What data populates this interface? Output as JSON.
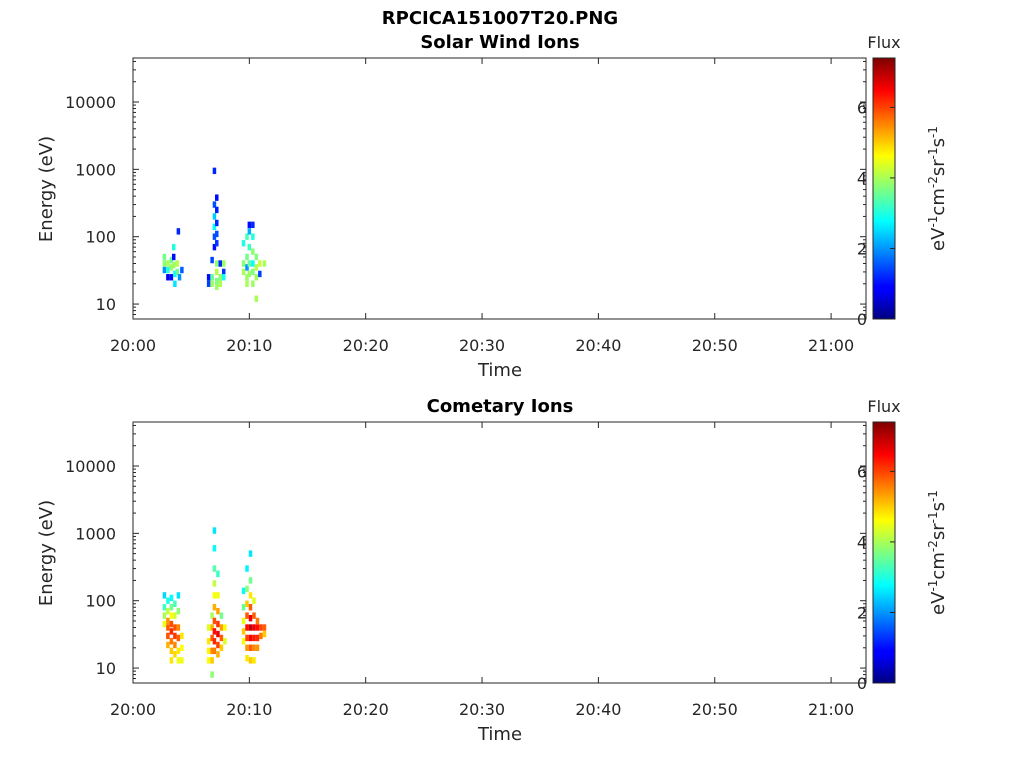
{
  "figure_title": "RPCICA151007T20.PNG",
  "colorbar": {
    "label": "Flux",
    "unit_base": "eV",
    "unit_exp1": "-1",
    "unit_cm": "cm",
    "unit_exp2": "-2",
    "unit_sr": "sr",
    "unit_exp3": "-1",
    "unit_s": "s",
    "unit_exp4": "-1",
    "range": [
      0,
      7.4
    ],
    "ticks": [
      "0",
      "2",
      "4",
      "6"
    ],
    "colormap": "jet"
  },
  "chart_data": [
    {
      "type": "heatmap",
      "title": "Solar Wind Ions",
      "xlabel": "Time",
      "ylabel": "Energy (eV)",
      "xlim_minutes_after_2000": [
        0,
        63
      ],
      "ylim": [
        6,
        45000
      ],
      "yscale": "log",
      "xtick_labels": [
        "20:00",
        "20:10",
        "20:20",
        "20:30",
        "20:40",
        "20:50",
        "21:00"
      ],
      "ytick_labels": [
        "10",
        "100",
        "1000",
        "10000"
      ],
      "grid": false,
      "cells": [
        {
          "t": 2.7,
          "e": 50,
          "v": 3.6
        },
        {
          "t": 2.7,
          "e": 40,
          "v": 3.8
        },
        {
          "t": 2.7,
          "e": 32,
          "v": 2.0
        },
        {
          "t": 3.0,
          "e": 40,
          "v": 4.0
        },
        {
          "t": 3.0,
          "e": 25,
          "v": 0.8
        },
        {
          "t": 3.0,
          "e": 32,
          "v": 3.0
        },
        {
          "t": 3.3,
          "e": 45,
          "v": 3.5
        },
        {
          "t": 3.3,
          "e": 35,
          "v": 3.9
        },
        {
          "t": 3.3,
          "e": 25,
          "v": 1.0
        },
        {
          "t": 3.5,
          "e": 70,
          "v": 3.0
        },
        {
          "t": 3.5,
          "e": 50,
          "v": 1.0
        },
        {
          "t": 3.5,
          "e": 38,
          "v": 3.9
        },
        {
          "t": 3.6,
          "e": 28,
          "v": 2.8
        },
        {
          "t": 3.6,
          "e": 20,
          "v": 2.6
        },
        {
          "t": 3.8,
          "e": 40,
          "v": 4.1
        },
        {
          "t": 3.8,
          "e": 30,
          "v": 3.5
        },
        {
          "t": 3.9,
          "e": 120,
          "v": 1.2
        },
        {
          "t": 4.0,
          "e": 25,
          "v": 2.0
        },
        {
          "t": 4.2,
          "e": 32,
          "v": 1.6
        },
        {
          "t": 6.5,
          "e": 25,
          "v": 1.0
        },
        {
          "t": 6.5,
          "e": 20,
          "v": 1.4
        },
        {
          "t": 6.8,
          "e": 45,
          "v": 1.4
        },
        {
          "t": 6.8,
          "e": 25,
          "v": 3.5
        },
        {
          "t": 6.8,
          "e": 20,
          "v": 3.9
        },
        {
          "t": 7.0,
          "e": 950,
          "v": 1.2
        },
        {
          "t": 7.0,
          "e": 300,
          "v": 1.5
        },
        {
          "t": 7.0,
          "e": 200,
          "v": 2.4
        },
        {
          "t": 7.0,
          "e": 140,
          "v": 2.8
        },
        {
          "t": 7.0,
          "e": 100,
          "v": 1.5
        },
        {
          "t": 7.0,
          "e": 70,
          "v": 1.0
        },
        {
          "t": 7.2,
          "e": 380,
          "v": 1.0
        },
        {
          "t": 7.2,
          "e": 250,
          "v": 1.1
        },
        {
          "t": 7.2,
          "e": 160,
          "v": 1.2
        },
        {
          "t": 7.2,
          "e": 110,
          "v": 1.5
        },
        {
          "t": 7.2,
          "e": 80,
          "v": 1.3
        },
        {
          "t": 7.2,
          "e": 40,
          "v": 3.8
        },
        {
          "t": 7.2,
          "e": 30,
          "v": 4.1
        },
        {
          "t": 7.2,
          "e": 22,
          "v": 3.7
        },
        {
          "t": 7.2,
          "e": 18,
          "v": 3.9
        },
        {
          "t": 7.5,
          "e": 40,
          "v": 1.2
        },
        {
          "t": 7.5,
          "e": 25,
          "v": 3.8
        },
        {
          "t": 7.5,
          "e": 20,
          "v": 4.0
        },
        {
          "t": 7.8,
          "e": 40,
          "v": 3.9
        },
        {
          "t": 7.8,
          "e": 30,
          "v": 1.3
        },
        {
          "t": 7.8,
          "e": 25,
          "v": 2.9
        },
        {
          "t": 9.5,
          "e": 80,
          "v": 3.0
        },
        {
          "t": 9.5,
          "e": 40,
          "v": 3.8
        },
        {
          "t": 9.5,
          "e": 30,
          "v": 4.0
        },
        {
          "t": 9.8,
          "e": 100,
          "v": 3.3
        },
        {
          "t": 9.8,
          "e": 50,
          "v": 3.6
        },
        {
          "t": 9.8,
          "e": 35,
          "v": 2.0
        },
        {
          "t": 9.8,
          "e": 25,
          "v": 3.9
        },
        {
          "t": 9.8,
          "e": 20,
          "v": 4.0
        },
        {
          "t": 10.0,
          "e": 150,
          "v": 1.0
        },
        {
          "t": 10.0,
          "e": 120,
          "v": 2.2
        },
        {
          "t": 10.0,
          "e": 70,
          "v": 3.2
        },
        {
          "t": 10.0,
          "e": 40,
          "v": 3.5
        },
        {
          "t": 10.0,
          "e": 28,
          "v": 3.9
        },
        {
          "t": 10.3,
          "e": 150,
          "v": 1.2
        },
        {
          "t": 10.3,
          "e": 100,
          "v": 3.0
        },
        {
          "t": 10.3,
          "e": 60,
          "v": 3.8
        },
        {
          "t": 10.3,
          "e": 40,
          "v": 2.8
        },
        {
          "t": 10.3,
          "e": 30,
          "v": 3.7
        },
        {
          "t": 10.3,
          "e": 20,
          "v": 3.9
        },
        {
          "t": 10.6,
          "e": 50,
          "v": 3.7
        },
        {
          "t": 10.6,
          "e": 35,
          "v": 4.1
        },
        {
          "t": 10.6,
          "e": 25,
          "v": 3.9
        },
        {
          "t": 10.6,
          "e": 12,
          "v": 4.0
        },
        {
          "t": 10.9,
          "e": 40,
          "v": 4.2
        },
        {
          "t": 10.9,
          "e": 28,
          "v": 1.4
        },
        {
          "t": 11.3,
          "e": 40,
          "v": 4.0
        }
      ]
    },
    {
      "type": "heatmap",
      "title": "Cometary Ions",
      "xlabel": "Time",
      "ylabel": "Energy (eV)",
      "xlim_minutes_after_2000": [
        0,
        63
      ],
      "ylim": [
        6,
        45000
      ],
      "yscale": "log",
      "xtick_labels": [
        "20:00",
        "20:10",
        "20:20",
        "20:30",
        "20:40",
        "20:50",
        "21:00"
      ],
      "ytick_labels": [
        "10",
        "100",
        "1000",
        "10000"
      ],
      "grid": false,
      "cells": [
        {
          "t": 2.7,
          "e": 120,
          "v": 2.5
        },
        {
          "t": 2.7,
          "e": 80,
          "v": 3.2
        },
        {
          "t": 2.7,
          "e": 60,
          "v": 4.0
        },
        {
          "t": 2.7,
          "e": 45,
          "v": 4.5
        },
        {
          "t": 3.0,
          "e": 100,
          "v": 3.0
        },
        {
          "t": 3.0,
          "e": 70,
          "v": 4.2
        },
        {
          "t": 3.0,
          "e": 50,
          "v": 5.4
        },
        {
          "t": 3.0,
          "e": 40,
          "v": 5.8
        },
        {
          "t": 3.0,
          "e": 30,
          "v": 5.9
        },
        {
          "t": 3.0,
          "e": 22,
          "v": 5.2
        },
        {
          "t": 3.3,
          "e": 110,
          "v": 2.8
        },
        {
          "t": 3.3,
          "e": 80,
          "v": 3.6
        },
        {
          "t": 3.3,
          "e": 60,
          "v": 4.6
        },
        {
          "t": 3.3,
          "e": 45,
          "v": 5.9
        },
        {
          "t": 3.3,
          "e": 35,
          "v": 6.2
        },
        {
          "t": 3.3,
          "e": 25,
          "v": 5.6
        },
        {
          "t": 3.3,
          "e": 18,
          "v": 5.0
        },
        {
          "t": 3.3,
          "e": 13,
          "v": 4.8
        },
        {
          "t": 3.6,
          "e": 90,
          "v": 3.3
        },
        {
          "t": 3.6,
          "e": 60,
          "v": 4.3
        },
        {
          "t": 3.6,
          "e": 40,
          "v": 5.9
        },
        {
          "t": 3.6,
          "e": 30,
          "v": 6.1
        },
        {
          "t": 3.6,
          "e": 22,
          "v": 5.5
        },
        {
          "t": 3.6,
          "e": 16,
          "v": 4.9
        },
        {
          "t": 3.9,
          "e": 120,
          "v": 2.6
        },
        {
          "t": 3.9,
          "e": 70,
          "v": 3.8
        },
        {
          "t": 3.9,
          "e": 40,
          "v": 5.5
        },
        {
          "t": 3.9,
          "e": 28,
          "v": 5.8
        },
        {
          "t": 3.9,
          "e": 18,
          "v": 4.8
        },
        {
          "t": 3.9,
          "e": 13,
          "v": 4.5
        },
        {
          "t": 4.2,
          "e": 30,
          "v": 4.8
        },
        {
          "t": 4.2,
          "e": 20,
          "v": 4.6
        },
        {
          "t": 4.2,
          "e": 13,
          "v": 4.5
        },
        {
          "t": 6.5,
          "e": 40,
          "v": 4.4
        },
        {
          "t": 6.5,
          "e": 25,
          "v": 4.8
        },
        {
          "t": 6.5,
          "e": 18,
          "v": 4.7
        },
        {
          "t": 6.5,
          "e": 13,
          "v": 4.6
        },
        {
          "t": 6.8,
          "e": 60,
          "v": 4.0
        },
        {
          "t": 6.8,
          "e": 40,
          "v": 5.2
        },
        {
          "t": 6.8,
          "e": 28,
          "v": 5.8
        },
        {
          "t": 6.8,
          "e": 18,
          "v": 5.5
        },
        {
          "t": 6.8,
          "e": 13,
          "v": 5.0
        },
        {
          "t": 6.8,
          "e": 8,
          "v": 3.8
        },
        {
          "t": 7.0,
          "e": 1100,
          "v": 2.6
        },
        {
          "t": 7.0,
          "e": 600,
          "v": 2.8
        },
        {
          "t": 7.0,
          "e": 300,
          "v": 3.4
        },
        {
          "t": 7.0,
          "e": 180,
          "v": 4.2
        },
        {
          "t": 7.0,
          "e": 120,
          "v": 4.6
        },
        {
          "t": 7.0,
          "e": 80,
          "v": 5.2
        },
        {
          "t": 7.0,
          "e": 50,
          "v": 5.9
        },
        {
          "t": 7.0,
          "e": 35,
          "v": 6.4
        },
        {
          "t": 7.0,
          "e": 25,
          "v": 6.2
        },
        {
          "t": 7.0,
          "e": 18,
          "v": 5.6
        },
        {
          "t": 7.3,
          "e": 250,
          "v": 3.2
        },
        {
          "t": 7.3,
          "e": 120,
          "v": 4.5
        },
        {
          "t": 7.3,
          "e": 70,
          "v": 5.3
        },
        {
          "t": 7.3,
          "e": 45,
          "v": 6.1
        },
        {
          "t": 7.3,
          "e": 32,
          "v": 6.6
        },
        {
          "t": 7.3,
          "e": 22,
          "v": 6.0
        },
        {
          "t": 7.3,
          "e": 16,
          "v": 5.2
        },
        {
          "t": 7.6,
          "e": 60,
          "v": 3.6
        },
        {
          "t": 7.6,
          "e": 40,
          "v": 5.3
        },
        {
          "t": 7.6,
          "e": 28,
          "v": 5.8
        },
        {
          "t": 7.6,
          "e": 20,
          "v": 5.0
        },
        {
          "t": 7.9,
          "e": 40,
          "v": 4.6
        },
        {
          "t": 7.9,
          "e": 25,
          "v": 4.4
        },
        {
          "t": 9.5,
          "e": 140,
          "v": 2.8
        },
        {
          "t": 9.5,
          "e": 80,
          "v": 3.5
        },
        {
          "t": 9.5,
          "e": 50,
          "v": 4.5
        },
        {
          "t": 9.5,
          "e": 35,
          "v": 5.0
        },
        {
          "t": 9.5,
          "e": 25,
          "v": 4.6
        },
        {
          "t": 9.8,
          "e": 300,
          "v": 2.7
        },
        {
          "t": 9.8,
          "e": 150,
          "v": 3.8
        },
        {
          "t": 9.8,
          "e": 90,
          "v": 5.0
        },
        {
          "t": 9.8,
          "e": 60,
          "v": 5.8
        },
        {
          "t": 9.8,
          "e": 40,
          "v": 6.4
        },
        {
          "t": 9.8,
          "e": 28,
          "v": 6.0
        },
        {
          "t": 9.8,
          "e": 20,
          "v": 5.4
        },
        {
          "t": 9.8,
          "e": 14,
          "v": 4.8
        },
        {
          "t": 10.1,
          "e": 500,
          "v": 2.6
        },
        {
          "t": 10.1,
          "e": 200,
          "v": 3.6
        },
        {
          "t": 10.1,
          "e": 120,
          "v": 4.8
        },
        {
          "t": 10.1,
          "e": 80,
          "v": 5.8
        },
        {
          "t": 10.1,
          "e": 55,
          "v": 6.6
        },
        {
          "t": 10.1,
          "e": 40,
          "v": 6.9
        },
        {
          "t": 10.1,
          "e": 28,
          "v": 6.5
        },
        {
          "t": 10.1,
          "e": 20,
          "v": 5.8
        },
        {
          "t": 10.1,
          "e": 13,
          "v": 5.0
        },
        {
          "t": 10.4,
          "e": 100,
          "v": 4.4
        },
        {
          "t": 10.4,
          "e": 60,
          "v": 5.8
        },
        {
          "t": 10.4,
          "e": 40,
          "v": 6.6
        },
        {
          "t": 10.4,
          "e": 28,
          "v": 6.3
        },
        {
          "t": 10.4,
          "e": 20,
          "v": 5.5
        },
        {
          "t": 10.4,
          "e": 13,
          "v": 4.8
        },
        {
          "t": 10.7,
          "e": 50,
          "v": 5.6
        },
        {
          "t": 10.7,
          "e": 40,
          "v": 6.4
        },
        {
          "t": 10.7,
          "e": 28,
          "v": 6.2
        },
        {
          "t": 10.7,
          "e": 20,
          "v": 5.4
        },
        {
          "t": 11.0,
          "e": 40,
          "v": 6.0
        },
        {
          "t": 11.0,
          "e": 30,
          "v": 5.6
        },
        {
          "t": 11.3,
          "e": 40,
          "v": 5.8
        },
        {
          "t": 11.3,
          "e": 32,
          "v": 5.0
        }
      ]
    }
  ]
}
